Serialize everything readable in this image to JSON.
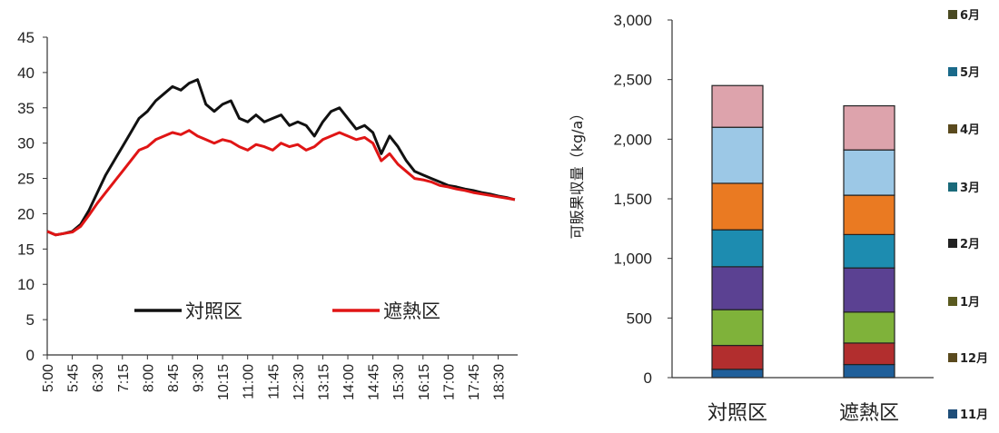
{
  "chart_data": [
    {
      "type": "line",
      "ylim": [
        0,
        45
      ],
      "yticks": [
        0,
        5,
        10,
        15,
        20,
        25,
        30,
        35,
        40,
        45
      ],
      "x_tick_labels": [
        "5:00",
        "5:45",
        "6:30",
        "7:15",
        "8:00",
        "8:45",
        "9:30",
        "10:15",
        "11:00",
        "11:45",
        "12:30",
        "13:15",
        "14:00",
        "14:45",
        "15:30",
        "16:15",
        "17:00",
        "17:45",
        "18:30"
      ],
      "x_start_min": 300,
      "x_end_min": 1145,
      "legend": "center",
      "series": [
        {
          "name": "対照区",
          "color": "#111111",
          "points": [
            [
              300,
              17.5
            ],
            [
              315,
              17.0
            ],
            [
              330,
              17.2
            ],
            [
              345,
              17.5
            ],
            [
              360,
              18.5
            ],
            [
              375,
              20.5
            ],
            [
              390,
              23.0
            ],
            [
              405,
              25.5
            ],
            [
              420,
              27.5
            ],
            [
              435,
              29.5
            ],
            [
              450,
              31.5
            ],
            [
              465,
              33.5
            ],
            [
              480,
              34.5
            ],
            [
              495,
              36.0
            ],
            [
              510,
              37.0
            ],
            [
              525,
              38.0
            ],
            [
              540,
              37.5
            ],
            [
              555,
              38.5
            ],
            [
              570,
              39.0
            ],
            [
              585,
              35.5
            ],
            [
              600,
              34.5
            ],
            [
              615,
              35.5
            ],
            [
              630,
              36.0
            ],
            [
              645,
              33.5
            ],
            [
              660,
              33.0
            ],
            [
              675,
              34.0
            ],
            [
              690,
              33.0
            ],
            [
              705,
              33.5
            ],
            [
              720,
              34.0
            ],
            [
              735,
              32.5
            ],
            [
              750,
              33.0
            ],
            [
              765,
              32.5
            ],
            [
              780,
              31.0
            ],
            [
              795,
              33.0
            ],
            [
              810,
              34.5
            ],
            [
              825,
              35.0
            ],
            [
              840,
              33.5
            ],
            [
              855,
              32.0
            ],
            [
              870,
              32.5
            ],
            [
              885,
              31.5
            ],
            [
              900,
              28.5
            ],
            [
              915,
              31.0
            ],
            [
              930,
              29.5
            ],
            [
              945,
              27.5
            ],
            [
              960,
              26.0
            ],
            [
              975,
              25.5
            ],
            [
              990,
              25.0
            ],
            [
              1005,
              24.5
            ],
            [
              1020,
              24.0
            ],
            [
              1035,
              23.8
            ],
            [
              1050,
              23.5
            ],
            [
              1065,
              23.3
            ],
            [
              1080,
              23.0
            ],
            [
              1095,
              22.8
            ],
            [
              1110,
              22.5
            ],
            [
              1125,
              22.3
            ],
            [
              1140,
              22.0
            ]
          ]
        },
        {
          "name": "遮熱区",
          "color": "#e01515",
          "points": [
            [
              300,
              17.5
            ],
            [
              315,
              17.0
            ],
            [
              330,
              17.2
            ],
            [
              345,
              17.4
            ],
            [
              360,
              18.2
            ],
            [
              375,
              19.8
            ],
            [
              390,
              21.5
            ],
            [
              405,
              23.0
            ],
            [
              420,
              24.5
            ],
            [
              435,
              26.0
            ],
            [
              450,
              27.5
            ],
            [
              465,
              29.0
            ],
            [
              480,
              29.5
            ],
            [
              495,
              30.5
            ],
            [
              510,
              31.0
            ],
            [
              525,
              31.5
            ],
            [
              540,
              31.2
            ],
            [
              555,
              31.8
            ],
            [
              570,
              31.0
            ],
            [
              585,
              30.5
            ],
            [
              600,
              30.0
            ],
            [
              615,
              30.5
            ],
            [
              630,
              30.2
            ],
            [
              645,
              29.5
            ],
            [
              660,
              29.0
            ],
            [
              675,
              29.8
            ],
            [
              690,
              29.5
            ],
            [
              705,
              29.0
            ],
            [
              720,
              30.0
            ],
            [
              735,
              29.5
            ],
            [
              750,
              29.8
            ],
            [
              765,
              29.0
            ],
            [
              780,
              29.5
            ],
            [
              795,
              30.5
            ],
            [
              810,
              31.0
            ],
            [
              825,
              31.5
            ],
            [
              840,
              31.0
            ],
            [
              855,
              30.5
            ],
            [
              870,
              30.8
            ],
            [
              885,
              30.0
            ],
            [
              900,
              27.5
            ],
            [
              915,
              28.5
            ],
            [
              930,
              27.0
            ],
            [
              945,
              26.0
            ],
            [
              960,
              25.0
            ],
            [
              975,
              24.8
            ],
            [
              990,
              24.5
            ],
            [
              1005,
              24.0
            ],
            [
              1020,
              23.8
            ],
            [
              1035,
              23.5
            ],
            [
              1050,
              23.3
            ],
            [
              1065,
              23.0
            ],
            [
              1080,
              22.8
            ],
            [
              1095,
              22.6
            ],
            [
              1110,
              22.4
            ],
            [
              1125,
              22.2
            ],
            [
              1140,
              22.0
            ]
          ]
        }
      ]
    },
    {
      "type": "bar",
      "stacked": true,
      "ylabel": "可販果収量（kg/a）",
      "ylim": [
        0,
        3000
      ],
      "yticks": [
        0,
        500,
        1000,
        1500,
        2000,
        2500,
        3000
      ],
      "ytick_labels": [
        "0",
        "500",
        "1,000",
        "1,500",
        "2,000",
        "2,500",
        "3,000"
      ],
      "categories": [
        "対照区",
        "遮熱区"
      ],
      "series": [
        {
          "name": "11月",
          "legend_color": "#1f4e79",
          "color": "#1f5f9a",
          "values": [
            70,
            110
          ]
        },
        {
          "name": "12月",
          "legend_color": "#5a4a1e",
          "color": "#b22e2e",
          "values": [
            200,
            180
          ]
        },
        {
          "name": "1月",
          "legend_color": "#5a5a20",
          "color": "#7fb23a",
          "values": [
            300,
            260
          ]
        },
        {
          "name": "2月",
          "legend_color": "#222222",
          "color": "#5b4192",
          "values": [
            360,
            370
          ]
        },
        {
          "name": "3月",
          "legend_color": "#1a6a7a",
          "color": "#1d8cb0",
          "values": [
            310,
            280
          ]
        },
        {
          "name": "4月",
          "legend_color": "#5a4a1e",
          "color": "#ea7a22",
          "values": [
            390,
            330
          ]
        },
        {
          "name": "5月",
          "legend_color": "#1a6a8a",
          "color": "#9cc8e6",
          "values": [
            470,
            380
          ]
        },
        {
          "name": "6月",
          "legend_color": "#4a4a22",
          "color": "#dda3ac",
          "values": [
            350,
            370
          ]
        }
      ]
    }
  ]
}
